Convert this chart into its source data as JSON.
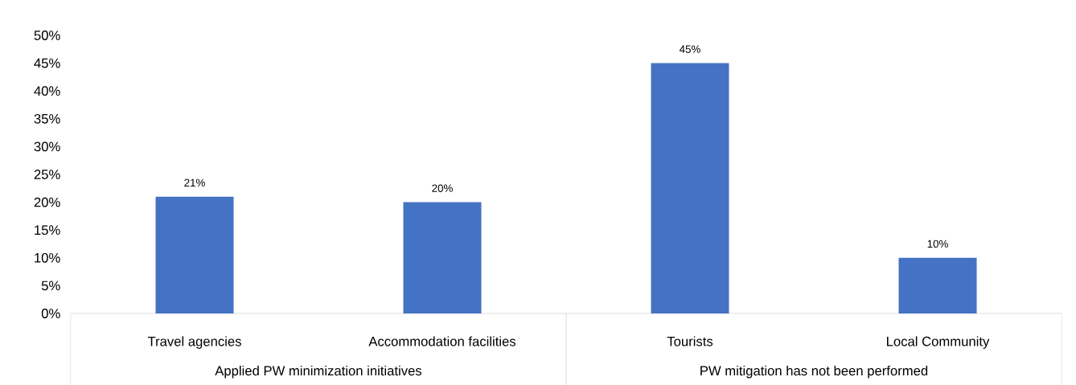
{
  "chart_data": {
    "type": "bar",
    "categories": [
      "Travel agencies",
      "Accommodation facilities",
      "Tourists",
      "Local Community"
    ],
    "values": [
      21,
      20,
      45,
      10
    ],
    "value_labels": [
      "21%",
      "20%",
      "45%",
      "10%"
    ],
    "color": "#4472c4",
    "ylim": [
      0,
      50
    ],
    "yticks": [
      {
        "value": 0,
        "label": "0%"
      },
      {
        "value": 5,
        "label": "5%"
      },
      {
        "value": 10,
        "label": "10%"
      },
      {
        "value": 15,
        "label": "15%"
      },
      {
        "value": 20,
        "label": "20%"
      },
      {
        "value": 25,
        "label": "25%"
      },
      {
        "value": 30,
        "label": "30%"
      },
      {
        "value": 35,
        "label": "35%"
      },
      {
        "value": 40,
        "label": "40%"
      },
      {
        "value": 45,
        "label": "45%"
      },
      {
        "value": 50,
        "label": "50%"
      }
    ],
    "grid": false,
    "annotations": [
      "Applied PW minimization initiatives",
      "PW mitigation has not been performed"
    ]
  }
}
